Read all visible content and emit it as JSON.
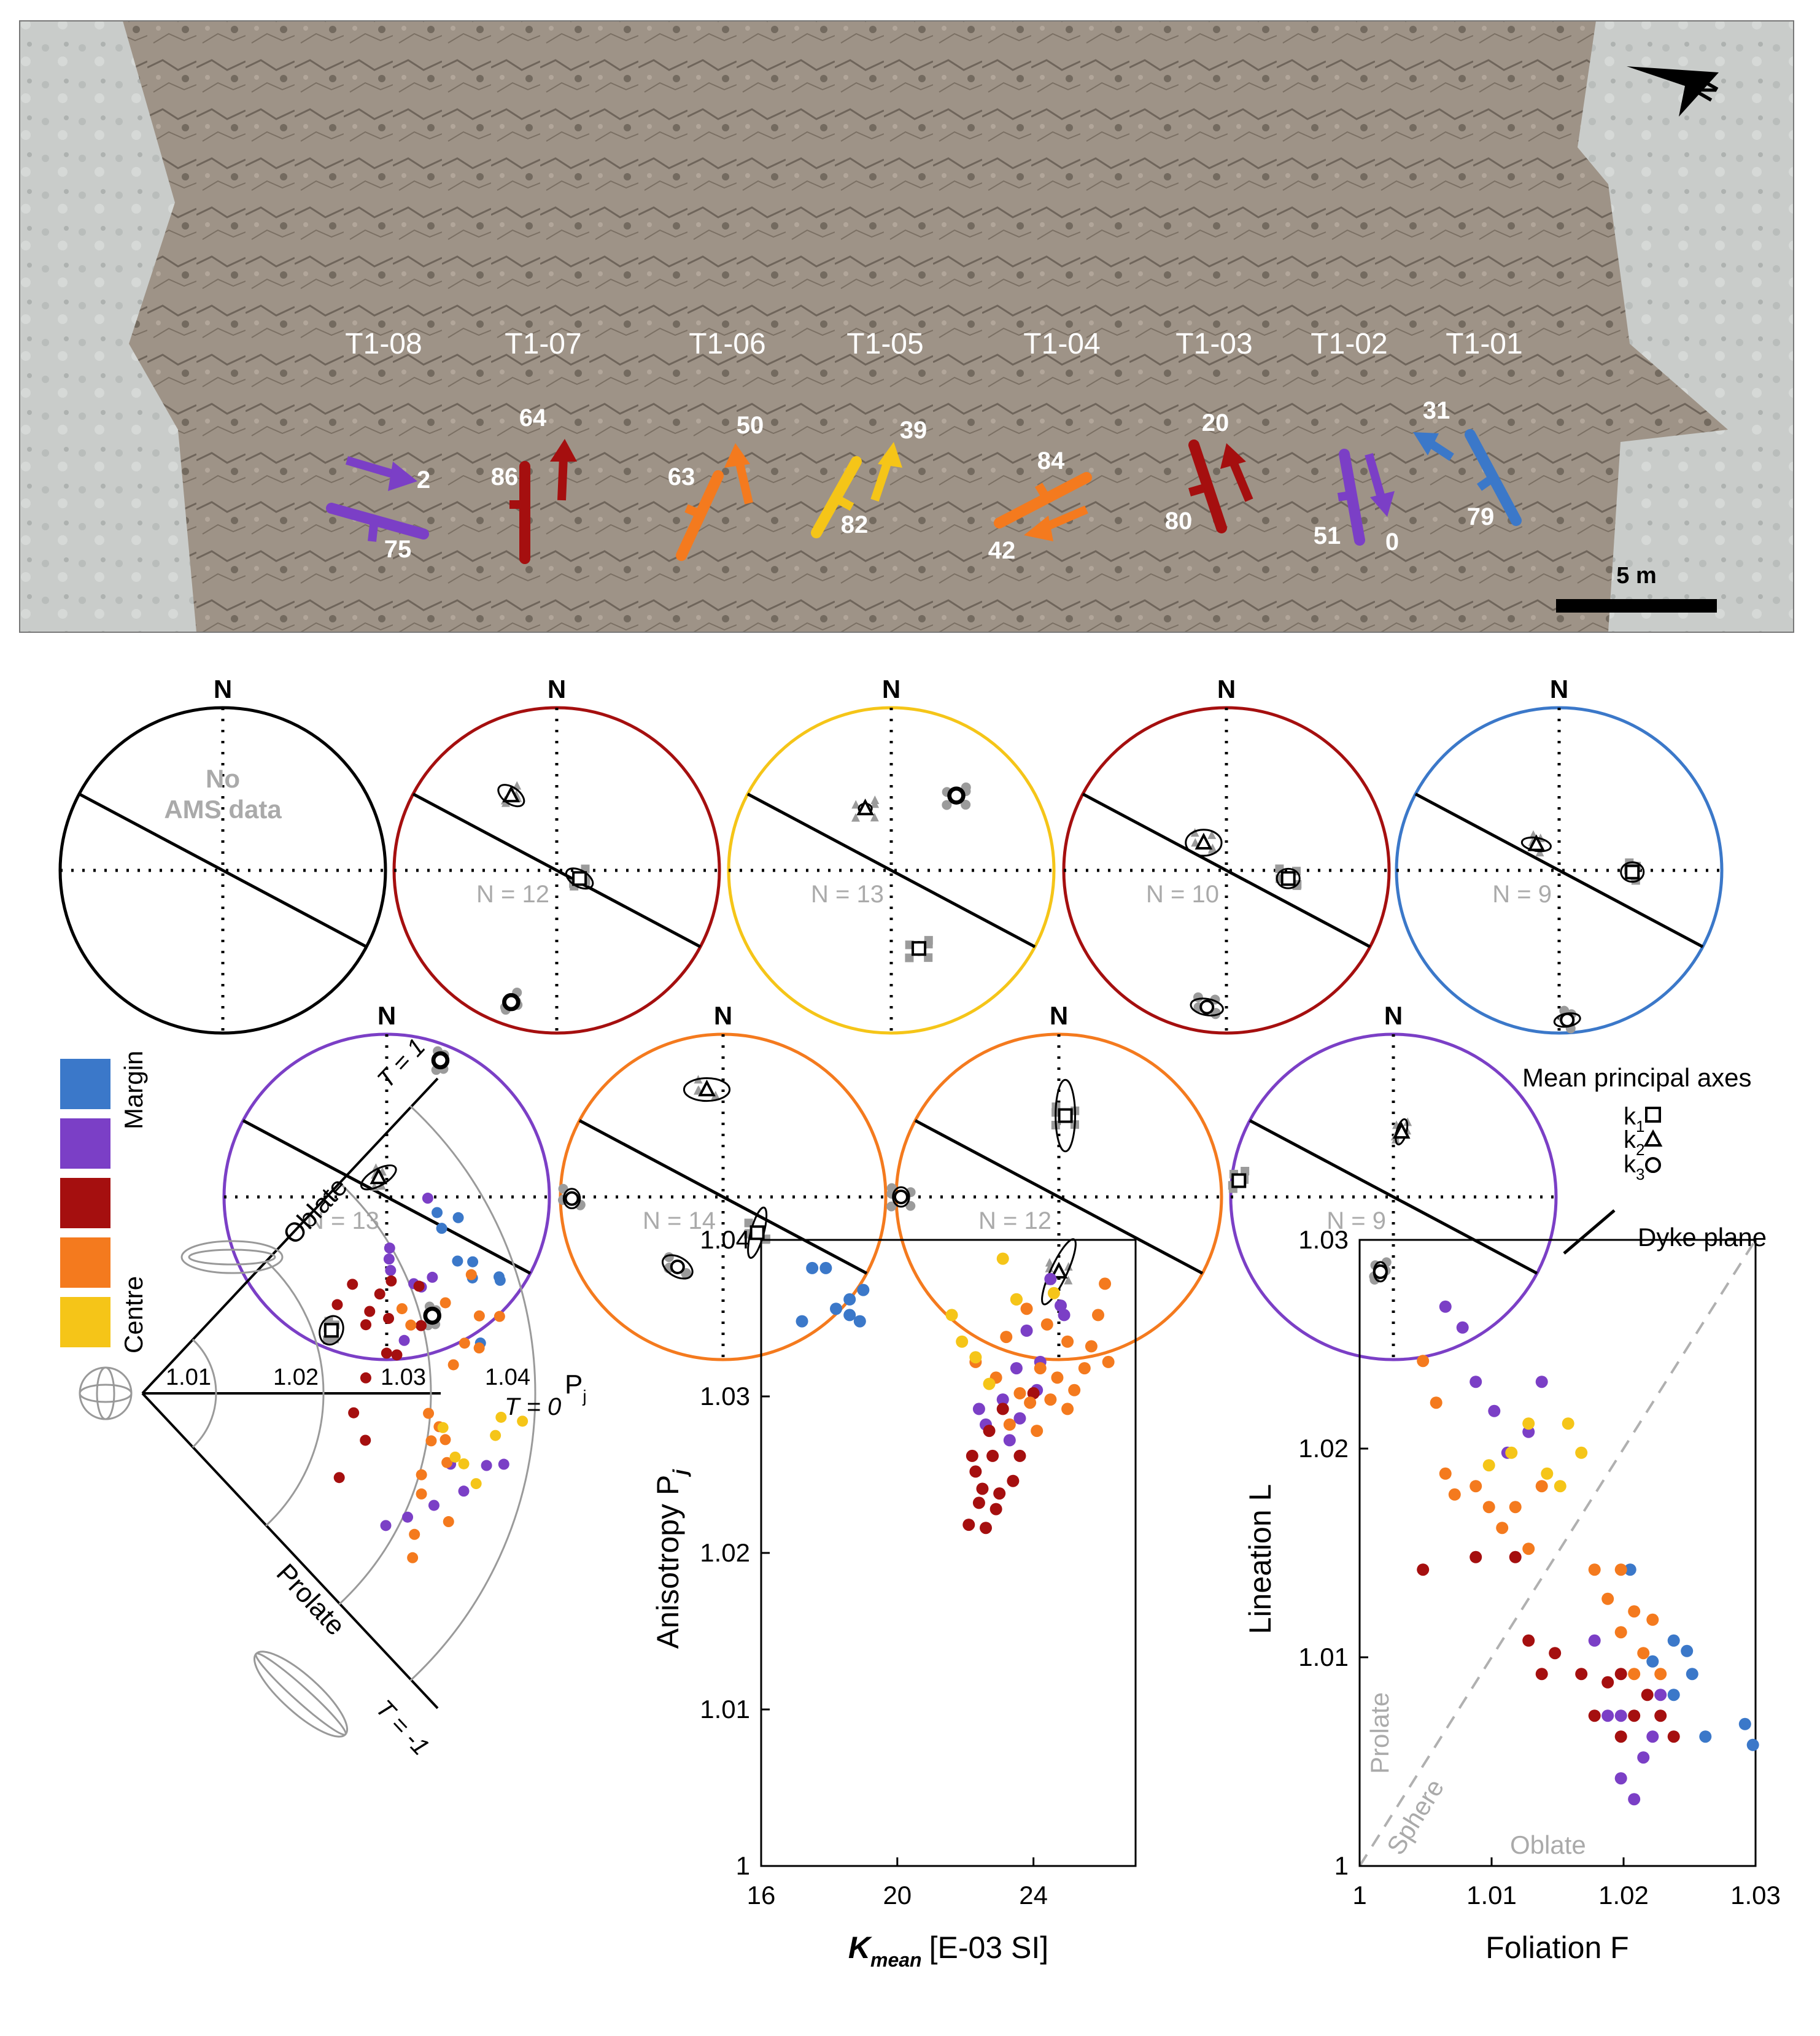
{
  "colors": {
    "margin_blue": "#3b78c9",
    "purple": "#7b3fc6",
    "dark_red": "#a50f0f",
    "orange": "#f47a1e",
    "yellow": "#f5c518",
    "grey_symbol": "#9b9b9b",
    "rock": "#9e9387"
  },
  "photo": {
    "stations": [
      {
        "id": "T1-08",
        "color": "purple"
      },
      {
        "id": "T1-07",
        "color": "dark_red"
      },
      {
        "id": "T1-06",
        "color": "orange"
      },
      {
        "id": "T1-05",
        "color": "yellow"
      },
      {
        "id": "T1-04",
        "color": "orange"
      },
      {
        "id": "T1-03",
        "color": "dark_red"
      },
      {
        "id": "T1-02",
        "color": "purple"
      },
      {
        "id": "T1-01",
        "color": "margin_blue"
      }
    ],
    "dip_labels": [
      "2",
      "75",
      "64",
      "86",
      "50",
      "63",
      "39",
      "82",
      "84",
      "42",
      "20",
      "80",
      "51",
      "0",
      "31",
      "79"
    ],
    "scale_bar": "5 m",
    "north_arrow": "N"
  },
  "stereonets": {
    "north": "N",
    "nets": [
      {
        "station": "T1-08",
        "color": "#000000",
        "no_data_line1": "No",
        "no_data_line2": "AMS data",
        "n_label": ""
      },
      {
        "station": "T1-07",
        "color": "dark_red",
        "n_label": "N = 12"
      },
      {
        "station": "T1-05",
        "color": "yellow",
        "n_label": "N = 13"
      },
      {
        "station": "T1-03",
        "color": "dark_red",
        "n_label": "N = 10"
      },
      {
        "station": "T1-01",
        "color": "margin_blue",
        "n_label": "N = 9"
      },
      {
        "station": "T1-02",
        "color": "purple",
        "n_label": "N = 13"
      },
      {
        "station": "T1-06",
        "color": "orange",
        "n_label": "N = 14"
      },
      {
        "station": "T1-04",
        "color": "orange",
        "n_label": "N = 12"
      },
      {
        "station": "T1-08",
        "color": "purple",
        "n_label": "N = 9"
      }
    ]
  },
  "legend": {
    "margin": "Margin",
    "centre": "Centre",
    "mean_axes": "Mean principal axes",
    "k1": "k",
    "k1_sub": "1",
    "k2": "k",
    "k2_sub": "2",
    "k3": "k",
    "k3_sub": "3",
    "dyke_plane": "Dyke plane"
  },
  "polar_plot": {
    "oblate": "Oblate",
    "prolate": "Prolate",
    "t_top": "T = 1",
    "t_mid": "T = 0",
    "t_bottom": "T = -1",
    "pj_label": "P",
    "pj_sub": "j",
    "rings": [
      "1.01",
      "1.02",
      "1.03",
      "1.04"
    ]
  },
  "chart_data": [
    {
      "type": "scatter",
      "title": "",
      "xlabel": "K",
      "xlabel_sub": "mean",
      "xlabel_unit": "[E-03 SI]",
      "ylabel": "Anisotropy P",
      "ylabel_sub": "j",
      "xlim": [
        16,
        27
      ],
      "ylim": [
        1,
        1.04
      ],
      "xticks": [
        "16",
        "20",
        "24"
      ],
      "yticks": [
        "1",
        "1.01",
        "1.02",
        "1.03",
        "1.04"
      ],
      "series": [
        {
          "color": "margin_blue",
          "points": [
            [
              17.2,
              1.0348
            ],
            [
              17.5,
              1.0382
            ],
            [
              17.9,
              1.0382
            ],
            [
              18.2,
              1.0356
            ],
            [
              18.6,
              1.0362
            ],
            [
              18.9,
              1.0348
            ],
            [
              19.0,
              1.0368
            ],
            [
              18.6,
              1.0352
            ]
          ]
        },
        {
          "color": "purple",
          "points": [
            [
              22.6,
              1.0282
            ],
            [
              23.1,
              1.0298
            ],
            [
              23.5,
              1.0318
            ],
            [
              23.8,
              1.0342
            ],
            [
              24.2,
              1.0322
            ],
            [
              24.5,
              1.0375
            ],
            [
              24.8,
              1.0358
            ],
            [
              23.3,
              1.0272
            ],
            [
              24.1,
              1.0304
            ],
            [
              22.4,
              1.0292
            ],
            [
              24.9,
              1.0352
            ],
            [
              23.6,
              1.0286
            ]
          ]
        },
        {
          "color": "dark_red",
          "points": [
            [
              22.1,
              1.0218
            ],
            [
              22.4,
              1.0232
            ],
            [
              22.6,
              1.0216
            ],
            [
              22.9,
              1.0228
            ],
            [
              22.3,
              1.0252
            ],
            [
              22.2,
              1.0262
            ],
            [
              23.1,
              1.0292
            ],
            [
              23.4,
              1.0246
            ],
            [
              22.8,
              1.0262
            ],
            [
              23.0,
              1.0238
            ],
            [
              23.6,
              1.0262
            ],
            [
              24.0,
              1.0302
            ],
            [
              22.7,
              1.0278
            ],
            [
              22.5,
              1.0241
            ]
          ]
        },
        {
          "color": "orange",
          "points": [
            [
              22.3,
              1.0322
            ],
            [
              22.9,
              1.0312
            ],
            [
              23.2,
              1.0338
            ],
            [
              23.6,
              1.0302
            ],
            [
              23.9,
              1.0296
            ],
            [
              24.2,
              1.0318
            ],
            [
              24.5,
              1.0298
            ],
            [
              24.7,
              1.0312
            ],
            [
              25.0,
              1.0292
            ],
            [
              25.2,
              1.0304
            ],
            [
              25.5,
              1.0318
            ],
            [
              25.7,
              1.0332
            ],
            [
              25.9,
              1.0352
            ],
            [
              26.1,
              1.0372
            ],
            [
              26.2,
              1.0322
            ],
            [
              23.3,
              1.0282
            ],
            [
              23.8,
              1.0356
            ],
            [
              24.4,
              1.0346
            ],
            [
              24.1,
              1.0278
            ],
            [
              23.5,
              1.0362
            ],
            [
              25.0,
              1.0335
            ]
          ]
        },
        {
          "color": "yellow",
          "points": [
            [
              21.6,
              1.0352
            ],
            [
              21.9,
              1.0335
            ],
            [
              22.3,
              1.0325
            ],
            [
              22.7,
              1.0308
            ],
            [
              23.1,
              1.0388
            ],
            [
              23.5,
              1.0362
            ],
            [
              24.6,
              1.0366
            ]
          ]
        }
      ]
    },
    {
      "type": "scatter",
      "title": "",
      "xlabel": "Foliation F",
      "ylabel": "Lineation L",
      "xlim": [
        1,
        1.03
      ],
      "ylim": [
        1,
        1.03
      ],
      "xticks": [
        "1",
        "1.01",
        "1.02",
        "1.03"
      ],
      "yticks": [
        "1",
        "1.01",
        "1.02",
        "1.03"
      ],
      "diagonal_labels": {
        "prolate": "Prolate",
        "sphere": "Sphere",
        "oblate": "Oblate"
      },
      "series": [
        {
          "color": "margin_blue",
          "points": [
            [
              1.0205,
              1.0142
            ],
            [
              1.0222,
              1.0098
            ],
            [
              1.0238,
              1.0108
            ],
            [
              1.0248,
              1.0103
            ],
            [
              1.0252,
              1.0092
            ],
            [
              1.0262,
              1.0062
            ],
            [
              1.0292,
              1.0068
            ],
            [
              1.0298,
              1.0058
            ],
            [
              1.0238,
              1.0082
            ]
          ]
        },
        {
          "color": "purple",
          "points": [
            [
              1.0065,
              1.0268
            ],
            [
              1.0078,
              1.0258
            ],
            [
              1.0088,
              1.0232
            ],
            [
              1.0102,
              1.0218
            ],
            [
              1.0112,
              1.0198
            ],
            [
              1.0128,
              1.0208
            ],
            [
              1.0138,
              1.0232
            ],
            [
              1.0178,
              1.0108
            ],
            [
              1.0188,
              1.0072
            ],
            [
              1.0198,
              1.0042
            ],
            [
              1.0208,
              1.0032
            ],
            [
              1.0215,
              1.0052
            ],
            [
              1.0222,
              1.0062
            ],
            [
              1.0228,
              1.0082
            ],
            [
              1.0198,
              1.0072
            ]
          ]
        },
        {
          "color": "dark_red",
          "points": [
            [
              1.0048,
              1.0142
            ],
            [
              1.0088,
              1.0148
            ],
            [
              1.0118,
              1.0148
            ],
            [
              1.0128,
              1.0108
            ],
            [
              1.0138,
              1.0092
            ],
            [
              1.0148,
              1.0102
            ],
            [
              1.0168,
              1.0092
            ],
            [
              1.0178,
              1.0072
            ],
            [
              1.0188,
              1.0088
            ],
            [
              1.0198,
              1.0092
            ],
            [
              1.0208,
              1.0072
            ],
            [
              1.0218,
              1.0082
            ],
            [
              1.0228,
              1.0072
            ],
            [
              1.0238,
              1.0062
            ],
            [
              1.0198,
              1.0062
            ]
          ]
        },
        {
          "color": "orange",
          "points": [
            [
              1.0048,
              1.0242
            ],
            [
              1.0058,
              1.0222
            ],
            [
              1.0065,
              1.0188
            ],
            [
              1.0072,
              1.0178
            ],
            [
              1.0088,
              1.0182
            ],
            [
              1.0098,
              1.0172
            ],
            [
              1.0108,
              1.0162
            ],
            [
              1.0118,
              1.0172
            ],
            [
              1.0128,
              1.0152
            ],
            [
              1.0138,
              1.0182
            ],
            [
              1.0178,
              1.0142
            ],
            [
              1.0188,
              1.0128
            ],
            [
              1.0198,
              1.0112
            ],
            [
              1.0208,
              1.0122
            ],
            [
              1.0215,
              1.0102
            ],
            [
              1.0222,
              1.0118
            ],
            [
              1.0228,
              1.0092
            ],
            [
              1.0198,
              1.0142
            ],
            [
              1.0208,
              1.0092
            ]
          ]
        },
        {
          "color": "yellow",
          "points": [
            [
              1.0098,
              1.0192
            ],
            [
              1.0115,
              1.0198
            ],
            [
              1.0128,
              1.0212
            ],
            [
              1.0142,
              1.0188
            ],
            [
              1.0152,
              1.0182
            ],
            [
              1.0158,
              1.0212
            ],
            [
              1.0168,
              1.0198
            ]
          ]
        }
      ]
    }
  ]
}
